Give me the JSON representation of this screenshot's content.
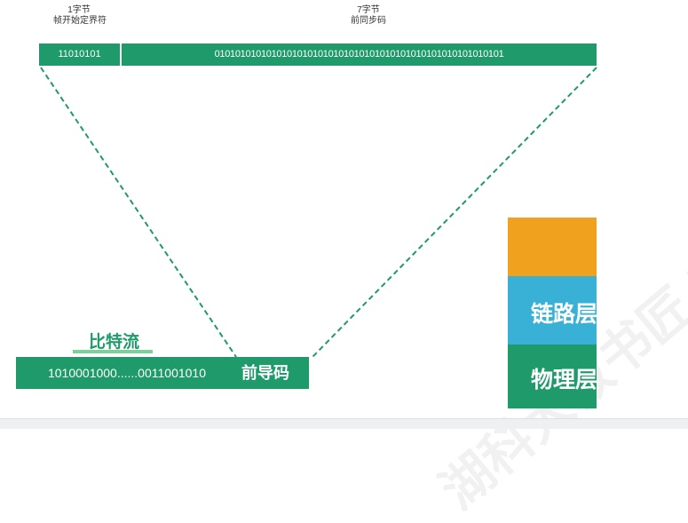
{
  "frame": {
    "sfd_size": "1字节",
    "sfd_name": "帧开始定界符",
    "sfd_bits": "11010101",
    "preamble_size": "7字节",
    "preamble_name": "前同步码",
    "preamble_bits": "01010101010101010101010101010101010101010101010101010101"
  },
  "bitstream": {
    "label": "比特流",
    "bits": "1010001000......0011001010",
    "preamble_tag": "前导码"
  },
  "layers": {
    "link": "链路层",
    "physical": "物理层"
  },
  "watermark": "湖科大教书匠  https://space.bilibili.com",
  "colors": {
    "green": "#1e9a6b",
    "orange": "#f0a21e",
    "blue": "#39b1d6",
    "light_green": "#7ecf9d"
  }
}
